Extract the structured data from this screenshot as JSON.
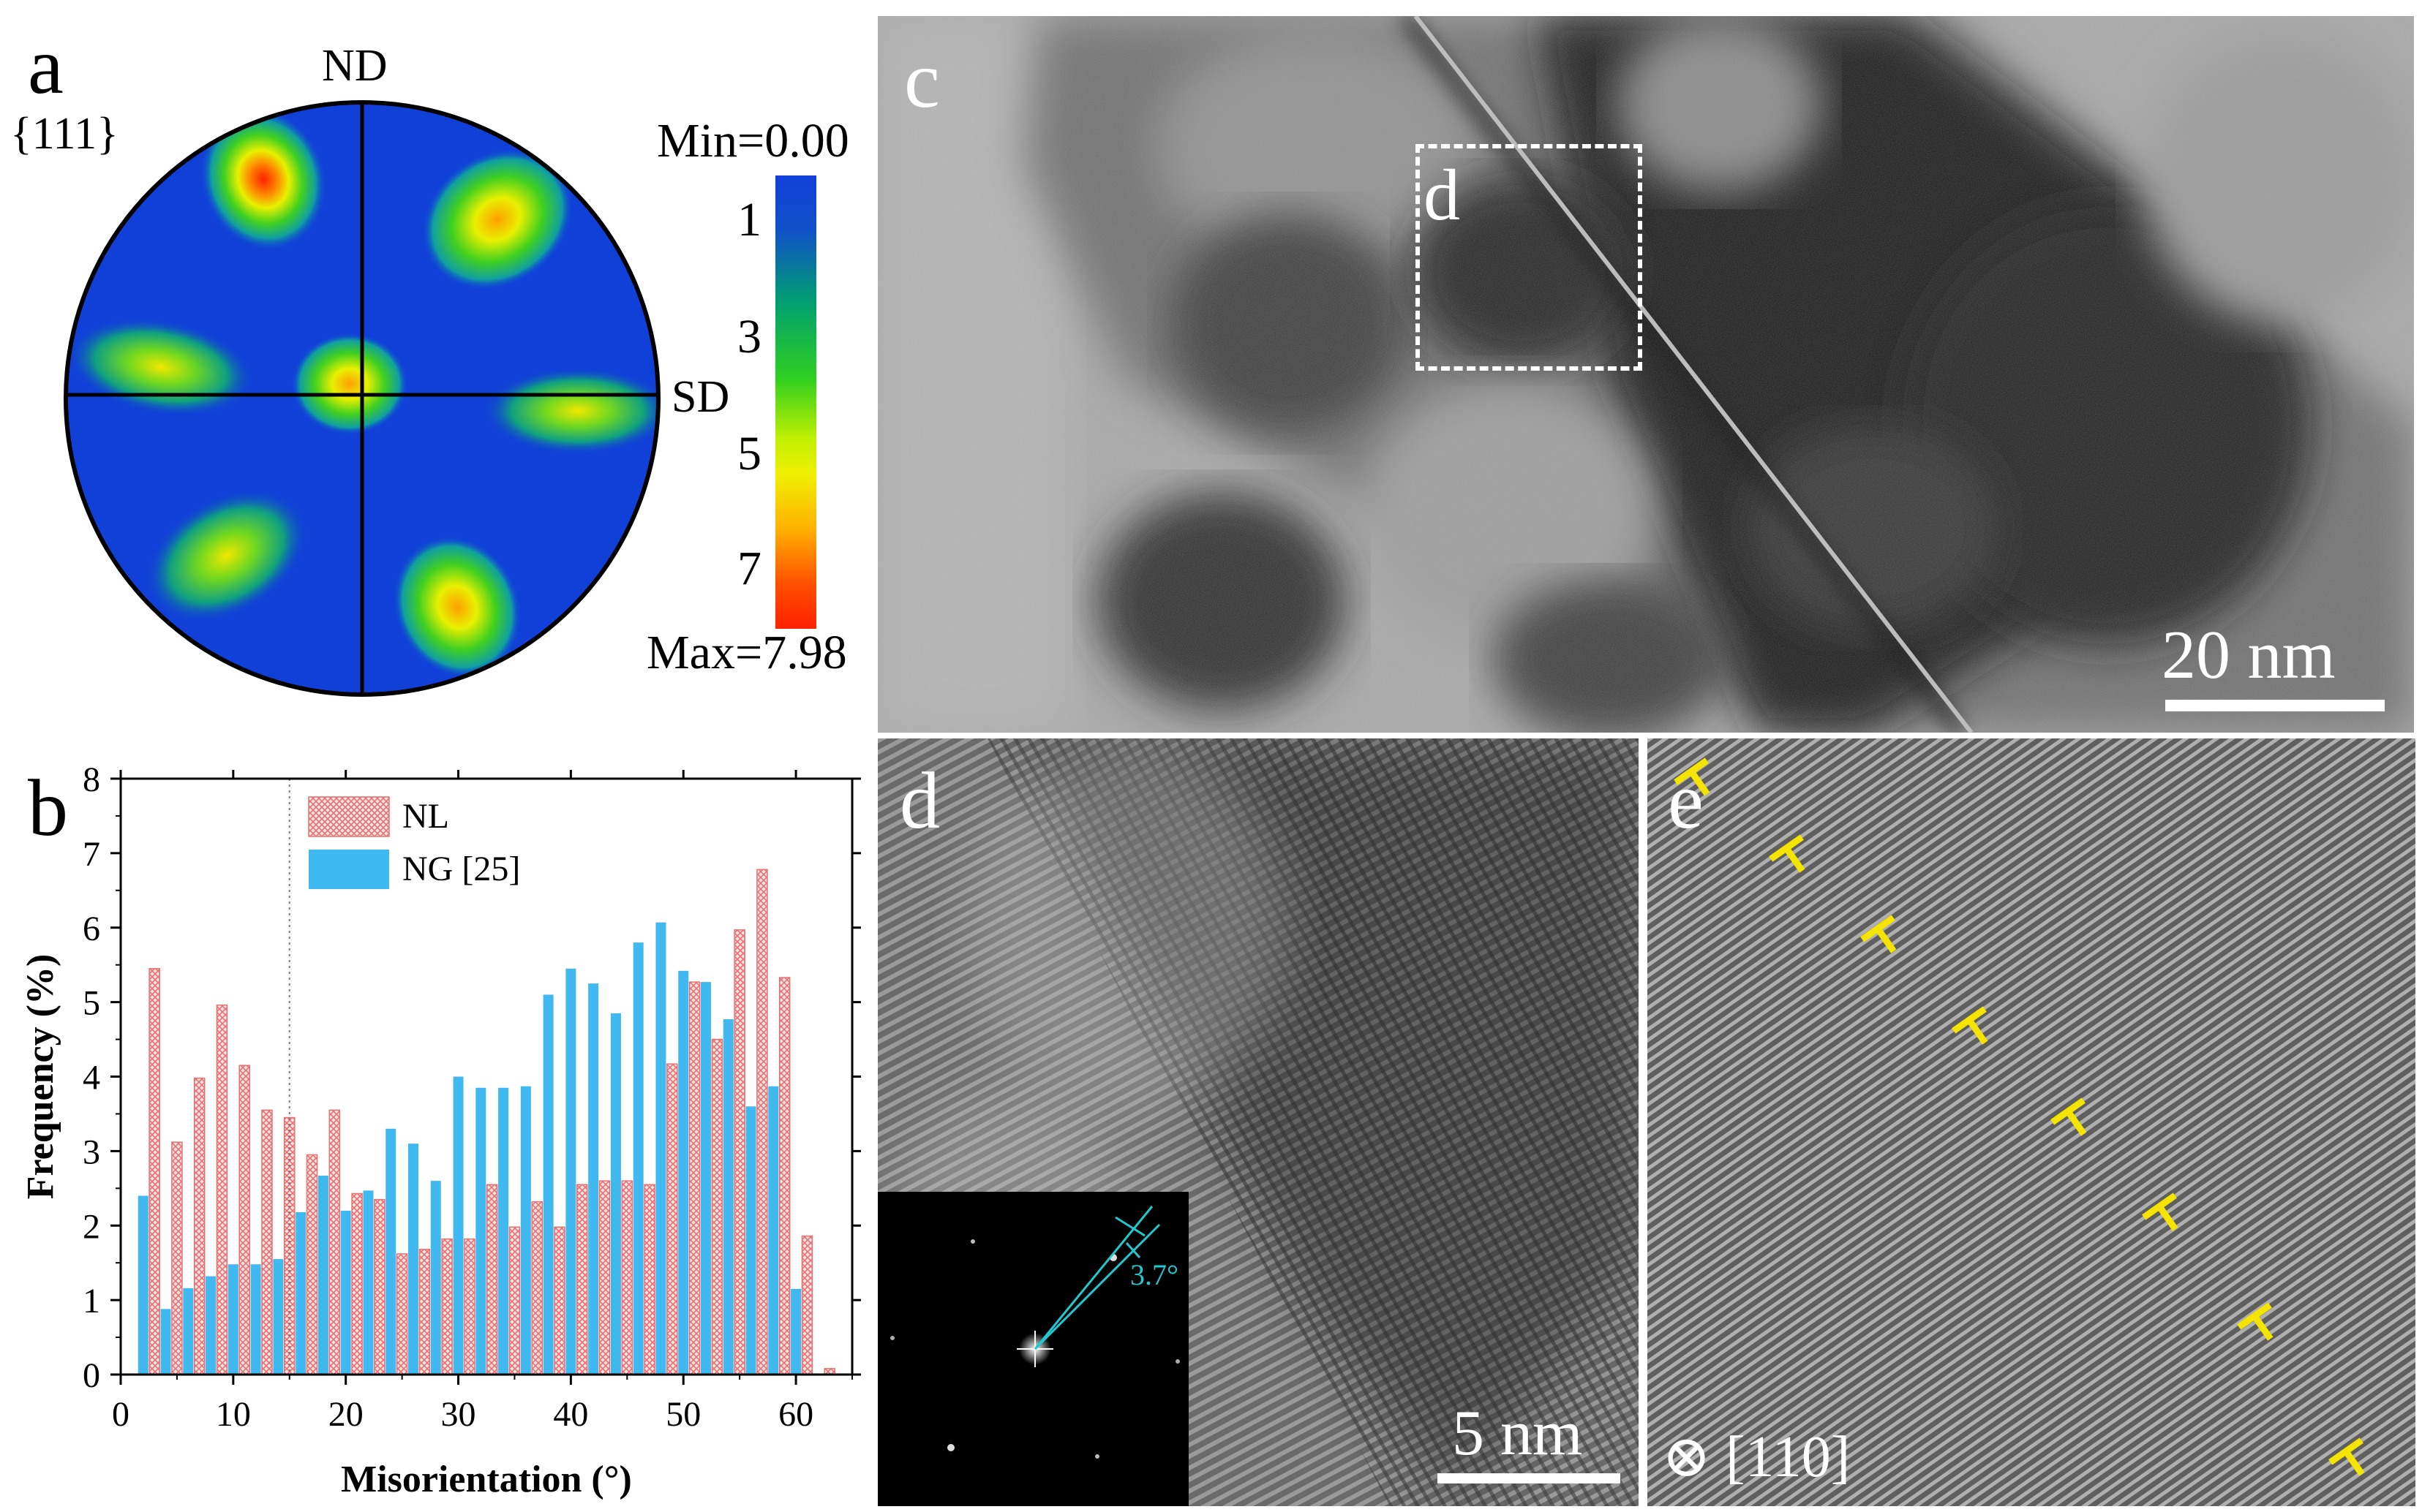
{
  "panels": {
    "a": {
      "letter": "a",
      "family": "{111}",
      "axis_top": "ND",
      "axis_right": "SD",
      "colorbar": {
        "min_label": "Min=0.00",
        "max_label": "Max=7.98",
        "ticks": [
          "1",
          "3",
          "5",
          "7"
        ],
        "colors": [
          "#1040d8",
          "#00a060",
          "#30d020",
          "#f0f000",
          "#ff2000"
        ]
      }
    },
    "b": {
      "letter": "b"
    },
    "c": {
      "letter": "c",
      "inset_box_label": "d",
      "scalebar": "20 nm"
    },
    "d": {
      "letter": "d",
      "scalebar": "5 nm",
      "fft_angle": "3.7°"
    },
    "e": {
      "letter": "e",
      "zone_axis": "⊗ [110]",
      "dislocation_color": "#f5e400"
    }
  },
  "chart_data": {
    "type": "bar",
    "xlabel": "Misorientation (°)",
    "ylabel": "Frequency (%)",
    "xlim": [
      0,
      65
    ],
    "ylim": [
      0,
      8
    ],
    "xticks": [
      "0",
      "10",
      "20",
      "30",
      "40",
      "50",
      "60"
    ],
    "yticks": [
      "0",
      "1",
      "2",
      "3",
      "4",
      "5",
      "6",
      "7",
      "8"
    ],
    "vline_x": 15,
    "legend_position": "top-left",
    "series": [
      {
        "name": "NL",
        "color": "#e87070",
        "x": [
          3,
          5,
          7,
          9,
          11,
          13,
          15,
          17,
          19,
          21,
          23,
          25,
          27,
          29,
          31,
          33,
          35,
          37,
          39,
          41,
          43,
          45,
          47,
          49,
          51,
          53,
          55,
          57,
          59,
          61,
          63
        ],
        "values": [
          5.45,
          3.12,
          3.98,
          4.96,
          4.15,
          3.55,
          3.45,
          2.95,
          3.55,
          2.43,
          2.35,
          1.62,
          1.68,
          1.82,
          1.82,
          2.55,
          1.98,
          2.32,
          1.98,
          2.55,
          2.6,
          2.6,
          2.55,
          4.17,
          5.27,
          4.5,
          5.97,
          6.78,
          5.33,
          1.86,
          0.08
        ]
      },
      {
        "name": "NG [25]",
        "color": "#40b8f0",
        "x": [
          2,
          4,
          6,
          8,
          10,
          12,
          14,
          16,
          18,
          20,
          22,
          24,
          26,
          28,
          30,
          32,
          34,
          36,
          38,
          40,
          42,
          44,
          46,
          48,
          50,
          52,
          54,
          56,
          58,
          60
        ],
        "values": [
          2.4,
          0.88,
          1.16,
          1.32,
          1.48,
          1.48,
          1.55,
          2.18,
          2.67,
          2.2,
          2.47,
          3.3,
          3.1,
          2.6,
          4.0,
          3.85,
          3.85,
          3.87,
          5.1,
          5.45,
          5.25,
          4.85,
          5.8,
          6.07,
          5.42,
          5.27,
          4.77,
          3.6,
          3.87,
          1.15
        ]
      }
    ]
  }
}
